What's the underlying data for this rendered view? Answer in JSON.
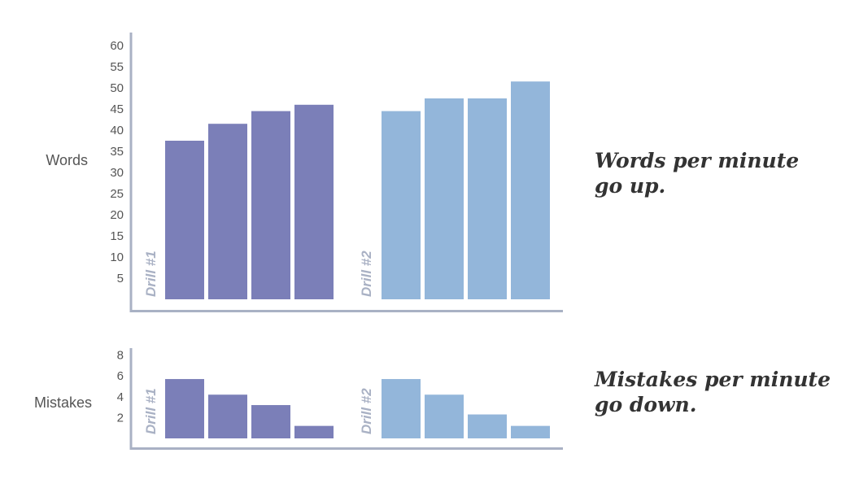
{
  "colors": {
    "drill1": "#7b7fb8",
    "drill2": "#93b6da",
    "axis": "#a9b1c4"
  },
  "captions": {
    "words": {
      "line1": "Words per minute",
      "line2": "go up."
    },
    "mistakes": {
      "line1": "Mistakes per minute",
      "line2": "go down."
    }
  },
  "chart_data": [
    {
      "type": "bar",
      "ylabel": "Words",
      "ylim": [
        0,
        62
      ],
      "yticks": [
        "5",
        "10",
        "15",
        "20",
        "25",
        "30",
        "35",
        "40",
        "45",
        "50",
        "55",
        "60"
      ],
      "series": [
        {
          "name": "Drill #1",
          "values": [
            37.5,
            41.5,
            44.5,
            46
          ]
        },
        {
          "name": "Drill #2",
          "values": [
            44.5,
            47.5,
            47.5,
            51.5
          ]
        }
      ]
    },
    {
      "type": "bar",
      "ylabel": "Mistakes",
      "ylim": [
        0,
        8.5
      ],
      "yticks": [
        "2",
        "4",
        "6",
        "8"
      ],
      "series": [
        {
          "name": "Drill #1",
          "values": [
            5.7,
            4.2,
            3.2,
            1.2
          ]
        },
        {
          "name": "Drill #2",
          "values": [
            5.7,
            4.2,
            2.3,
            1.2
          ]
        }
      ]
    }
  ]
}
